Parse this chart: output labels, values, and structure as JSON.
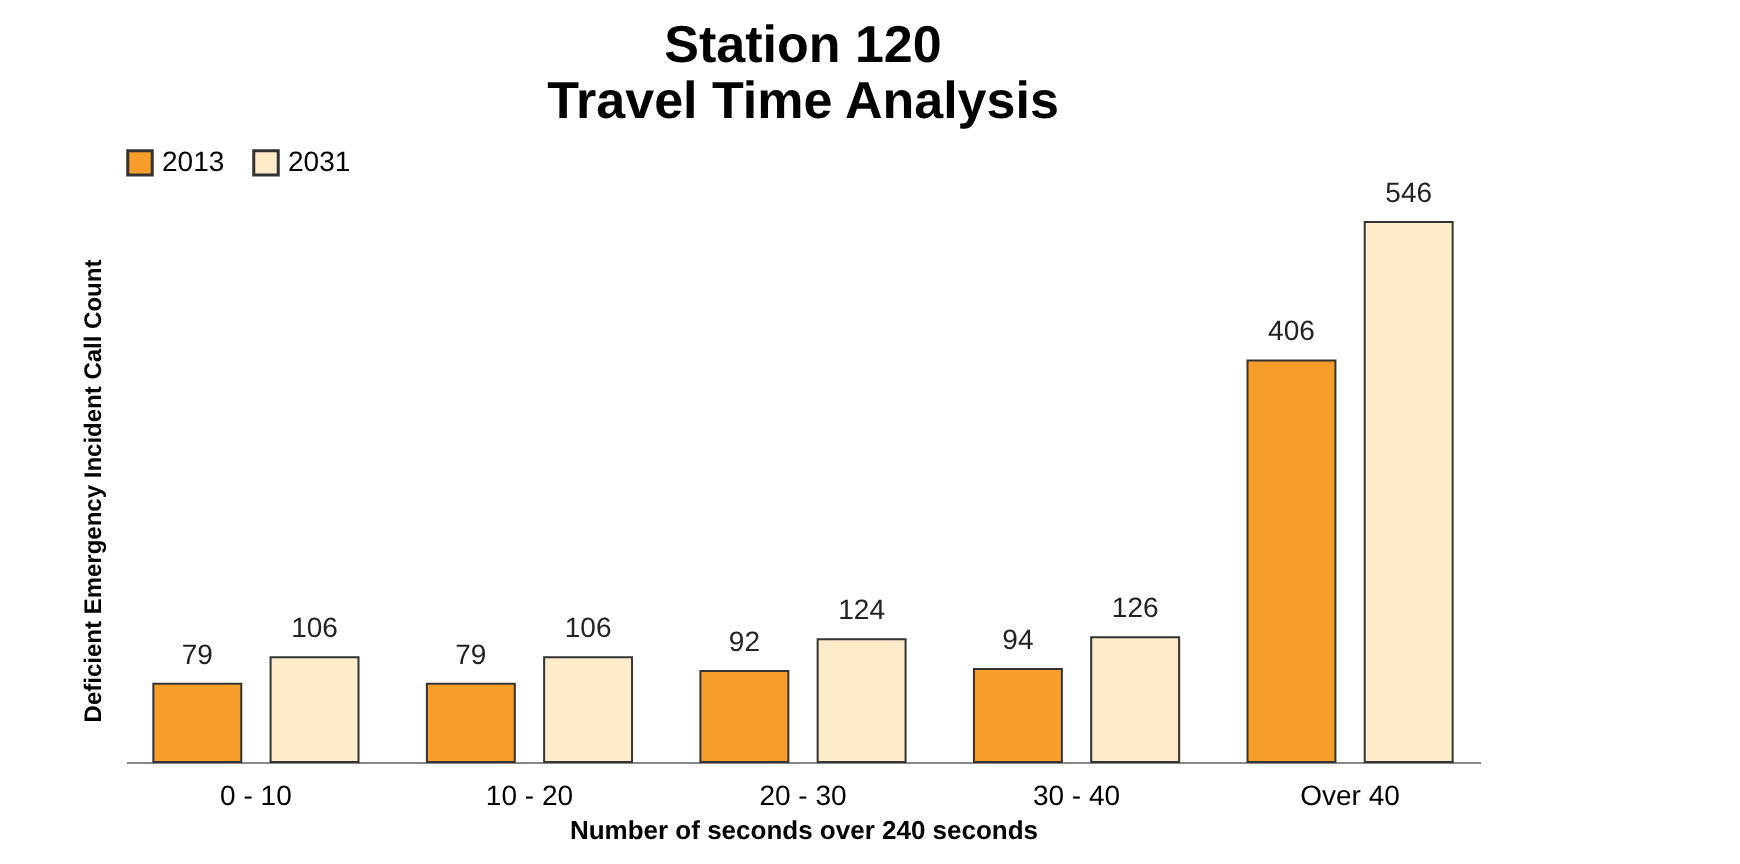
{
  "chart_data": {
    "type": "bar",
    "title": [
      "Station 120",
      "Travel Time Analysis"
    ],
    "xlabel": "Number of seconds over 240 seconds",
    "ylabel": "Deficient Emergency Incident Call Count",
    "categories": [
      "0 - 10",
      "10 - 20",
      "20 - 30",
      "30 - 40",
      "Over 40"
    ],
    "series": [
      {
        "name": "2013",
        "color": "#f79d2a",
        "values": [
          79,
          79,
          92,
          94,
          406
        ]
      },
      {
        "name": "2031",
        "color": "#fdebc9",
        "values": [
          106,
          106,
          124,
          126,
          546
        ]
      }
    ],
    "data_labels": true,
    "legend": "top",
    "grid": false
  }
}
